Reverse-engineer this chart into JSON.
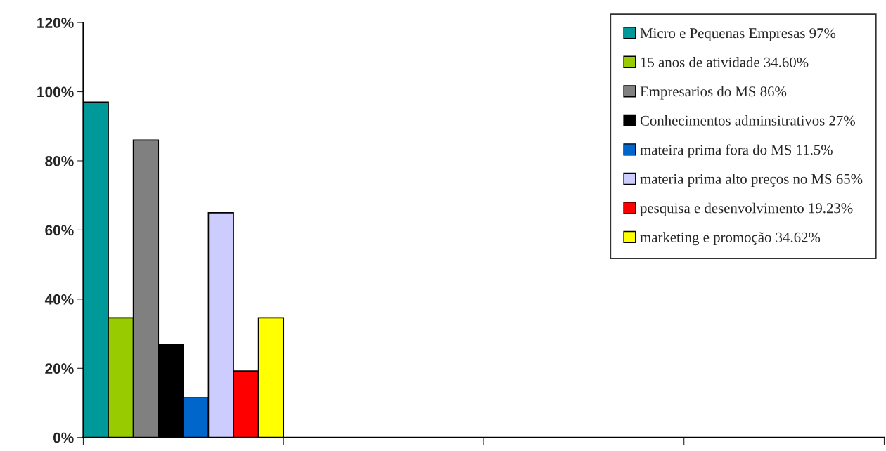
{
  "chart_data": {
    "type": "bar",
    "categories": [
      null,
      null,
      null,
      null
    ],
    "series": [
      {
        "name": "Micro e Pequenas Empresas 97%",
        "color": "#009999",
        "values": [
          97,
          null,
          null,
          null
        ]
      },
      {
        "name": "15 anos de atividade 34.60%",
        "color": "#99cc00",
        "values": [
          34.6,
          null,
          null,
          null
        ]
      },
      {
        "name": "Empresarios do MS 86%",
        "color": "#808080",
        "values": [
          86,
          null,
          null,
          null
        ]
      },
      {
        "name": "Conhecimentos adminsitrativos 27%",
        "color": "#000000",
        "values": [
          27,
          null,
          null,
          null
        ]
      },
      {
        "name": "mateira prima fora do MS 11.5%",
        "color": "#0066cc",
        "values": [
          11.5,
          null,
          null,
          null
        ]
      },
      {
        "name": "materia prima alto preços no MS 65%",
        "color": "#ccccff",
        "values": [
          65,
          null,
          null,
          null
        ]
      },
      {
        "name": "pesquisa e desenvolvimento 19.23%",
        "color": "#ff0000",
        "values": [
          19.23,
          null,
          null,
          null
        ]
      },
      {
        "name": "marketing e promoção 34.62%",
        "color": "#ffff00",
        "values": [
          34.62,
          null,
          null,
          null
        ]
      }
    ],
    "ylim": [
      0,
      120
    ],
    "yticks": [
      {
        "value": 0,
        "label": "0%"
      },
      {
        "value": 20,
        "label": "20%"
      },
      {
        "value": 40,
        "label": "40%"
      },
      {
        "value": 60,
        "label": "60%"
      },
      {
        "value": 80,
        "label": "80%"
      },
      {
        "value": 100,
        "label": "100%"
      },
      {
        "value": 120,
        "label": "120%"
      }
    ],
    "grid": false,
    "legend": "top right"
  }
}
